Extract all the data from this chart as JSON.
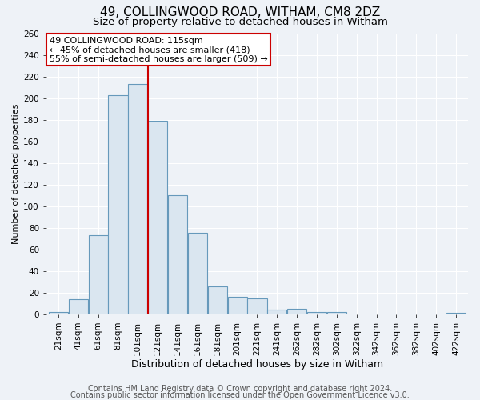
{
  "title": "49, COLLINGWOOD ROAD, WITHAM, CM8 2DZ",
  "subtitle": "Size of property relative to detached houses in Witham",
  "xlabel": "Distribution of detached houses by size in Witham",
  "ylabel": "Number of detached properties",
  "bin_labels": [
    "21sqm",
    "41sqm",
    "61sqm",
    "81sqm",
    "101sqm",
    "121sqm",
    "141sqm",
    "161sqm",
    "181sqm",
    "201sqm",
    "221sqm",
    "241sqm",
    "262sqm",
    "282sqm",
    "302sqm",
    "322sqm",
    "342sqm",
    "362sqm",
    "382sqm",
    "402sqm",
    "422sqm"
  ],
  "bar_heights": [
    2,
    14,
    73,
    203,
    213,
    179,
    110,
    75,
    26,
    16,
    15,
    4,
    5,
    2,
    2,
    0,
    0,
    0,
    0,
    0,
    1
  ],
  "bar_color": "#dae6f0",
  "bar_edge_color": "#6699bb",
  "vline_x_index": 5,
  "vline_color": "#cc0000",
  "annotation_line1": "49 COLLINGWOOD ROAD: 115sqm",
  "annotation_line2": "← 45% of detached houses are smaller (418)",
  "annotation_line3": "55% of semi-detached houses are larger (509) →",
  "annotation_box_facecolor": "#ffffff",
  "annotation_box_edgecolor": "#cc0000",
  "ylim": [
    0,
    260
  ],
  "yticks": [
    0,
    20,
    40,
    60,
    80,
    100,
    120,
    140,
    160,
    180,
    200,
    220,
    240,
    260
  ],
  "footer_line1": "Contains HM Land Registry data © Crown copyright and database right 2024.",
  "footer_line2": "Contains public sector information licensed under the Open Government Licence v3.0.",
  "background_color": "#eef2f7",
  "grid_color": "#ffffff",
  "title_fontsize": 11,
  "subtitle_fontsize": 9.5,
  "xlabel_fontsize": 9,
  "ylabel_fontsize": 8,
  "tick_fontsize": 7.5,
  "annotation_fontsize": 8,
  "footer_fontsize": 7
}
